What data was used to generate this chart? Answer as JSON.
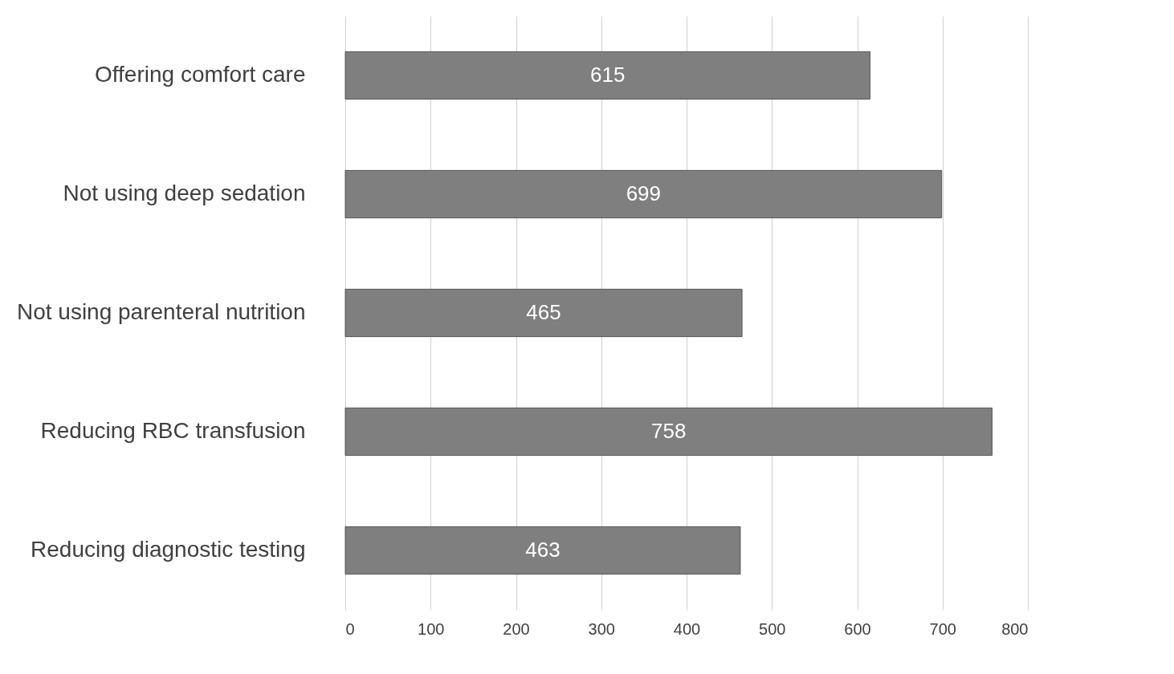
{
  "chart_data": {
    "type": "bar",
    "orientation": "horizontal",
    "categories": [
      "Offering comfort care",
      "Not using deep sedation",
      "Not using parenteral nutrition",
      "Reducing RBC transfusion",
      "Reducing diagnostic testing"
    ],
    "values": [
      615,
      699,
      465,
      758,
      463
    ],
    "color": "#7f7f7f",
    "data_labels": true,
    "xlim": [
      0,
      800
    ],
    "xticks": [
      0,
      100,
      200,
      300,
      400,
      500,
      600,
      700,
      800
    ],
    "grid": "x"
  }
}
